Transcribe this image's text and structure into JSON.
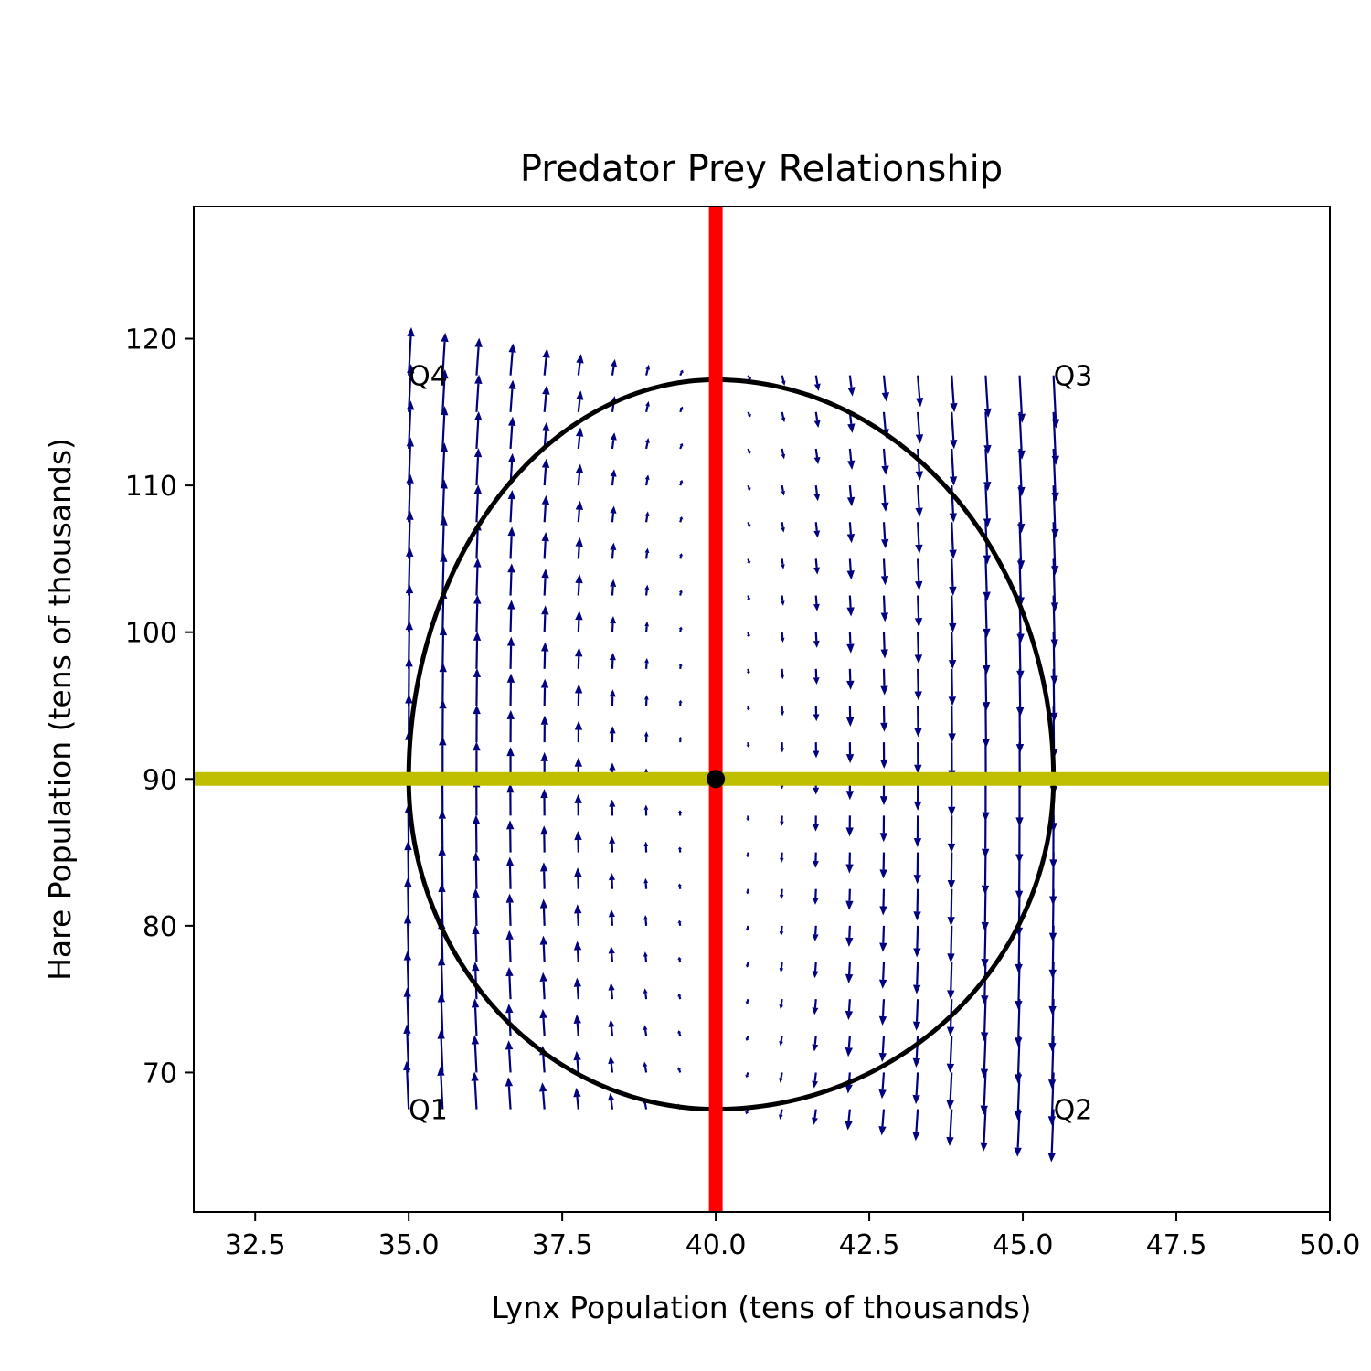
{
  "chart_data": {
    "type": "quiver",
    "title": "Predator Prey Relationship",
    "xlabel": "Lynx Population (tens of thousands)",
    "ylabel": "Hare Population (tens of thousands)",
    "xlim": [
      31.5,
      50.0
    ],
    "ylim": [
      60.5,
      129.0
    ],
    "xticks": [
      32.5,
      35.0,
      37.5,
      40.0,
      42.5,
      45.0,
      47.5,
      50.0
    ],
    "xtick_labels": [
      "32.5",
      "35.0",
      "37.5",
      "40.0",
      "42.5",
      "45.0",
      "47.5",
      "50.0"
    ],
    "yticks": [
      70,
      80,
      90,
      100,
      110,
      120
    ],
    "ytick_labels": [
      "70",
      "80",
      "90",
      "100",
      "110",
      "120"
    ],
    "grid": false,
    "equilibrium": {
      "x": 40.0,
      "y": 90.0
    },
    "nullclines": {
      "vertical": {
        "x": 40.0,
        "color": "#ff0000"
      },
      "horizontal": {
        "y": 90.0,
        "color": "#bfbf00"
      }
    },
    "orbit": {
      "x_range": [
        35.0,
        45.5
      ],
      "y_range": [
        67.5,
        117.2
      ],
      "color": "#000000"
    },
    "vector_field": {
      "x_range": [
        35.0,
        45.5
      ],
      "y_range": [
        67.5,
        117.5
      ],
      "nx": 20,
      "ny": 21,
      "color": "#000080"
    },
    "annotations": [
      {
        "text": "Q1",
        "x": 35.0,
        "y": 67.5
      },
      {
        "text": "Q2",
        "x": 45.5,
        "y": 67.5
      },
      {
        "text": "Q3",
        "x": 45.5,
        "y": 117.5
      },
      {
        "text": "Q4",
        "x": 35.0,
        "y": 117.5
      }
    ],
    "colors": {
      "orbit": "#000000",
      "arrows": "#000080",
      "red_line": "#ff0000",
      "yellow_line": "#bfbf00"
    }
  }
}
